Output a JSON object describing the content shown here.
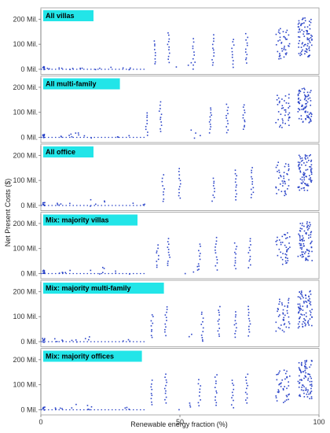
{
  "chart_data": {
    "type": "scatter",
    "ylabel": "Net Present Costs ($)",
    "xlabel": "Renewable energy fraction (%)",
    "xlim": [
      0,
      100
    ],
    "ylim": [
      0,
      220
    ],
    "x_ticks": [
      0,
      50,
      100
    ],
    "y_ticks": [
      0,
      100,
      200
    ],
    "y_tick_labels": [
      "0 Mil.",
      "100 Mil.",
      "200 Mil."
    ],
    "label_color": "#22e5e8",
    "point_color": "#2b44c8",
    "frame_color": "#9a9a9a",
    "panels": [
      {
        "label": "All villas",
        "clusters": [
          {
            "x": 1,
            "ymin": 0,
            "ymax": 12,
            "n": 8
          },
          {
            "x": 5,
            "ymin": 0,
            "ymax": 6,
            "n": 4
          },
          {
            "x": 12,
            "ymin": 0,
            "ymax": 6,
            "n": 4
          },
          {
            "x": 22,
            "ymin": 0,
            "ymax": 8,
            "n": 3
          },
          {
            "x": 30,
            "ymin": 0,
            "ymax": 6,
            "n": 3
          },
          {
            "x": 41,
            "ymin": 20,
            "ymax": 115,
            "n": 9
          },
          {
            "x": 46,
            "ymin": 30,
            "ymax": 145,
            "n": 11
          },
          {
            "x": 52,
            "ymin": 0,
            "ymax": 25,
            "n": 4
          },
          {
            "x": 55,
            "ymin": 15,
            "ymax": 120,
            "n": 9
          },
          {
            "x": 62,
            "ymin": 15,
            "ymax": 135,
            "n": 11
          },
          {
            "x": 69,
            "ymin": 10,
            "ymax": 120,
            "n": 10
          },
          {
            "x": 74,
            "ymin": 25,
            "ymax": 140,
            "n": 11
          },
          {
            "x": 87,
            "ymin": 40,
            "ymax": 160,
            "n": 40
          },
          {
            "x": 95,
            "ymin": 50,
            "ymax": 205,
            "n": 80
          }
        ]
      },
      {
        "label": "All multi-family",
        "clusters": [
          {
            "x": 1,
            "ymin": 0,
            "ymax": 12,
            "n": 8
          },
          {
            "x": 8,
            "ymin": 0,
            "ymax": 10,
            "n": 5
          },
          {
            "x": 15,
            "ymin": 0,
            "ymax": 20,
            "n": 5
          },
          {
            "x": 30,
            "ymin": 0,
            "ymax": 8,
            "n": 3
          },
          {
            "x": 38,
            "ymin": 10,
            "ymax": 100,
            "n": 9
          },
          {
            "x": 43,
            "ymin": 25,
            "ymax": 140,
            "n": 11
          },
          {
            "x": 55,
            "ymin": 0,
            "ymax": 30,
            "n": 4
          },
          {
            "x": 61,
            "ymin": 20,
            "ymax": 120,
            "n": 11
          },
          {
            "x": 67,
            "ymin": 20,
            "ymax": 130,
            "n": 11
          },
          {
            "x": 73,
            "ymin": 30,
            "ymax": 130,
            "n": 11
          },
          {
            "x": 87,
            "ymin": 40,
            "ymax": 170,
            "n": 40
          },
          {
            "x": 95,
            "ymin": 60,
            "ymax": 195,
            "n": 80
          }
        ]
      },
      {
        "label": "All office",
        "clusters": [
          {
            "x": 1,
            "ymin": 0,
            "ymax": 12,
            "n": 8
          },
          {
            "x": 8,
            "ymin": 0,
            "ymax": 10,
            "n": 5
          },
          {
            "x": 20,
            "ymin": 0,
            "ymax": 25,
            "n": 5
          },
          {
            "x": 35,
            "ymin": 0,
            "ymax": 8,
            "n": 3
          },
          {
            "x": 44,
            "ymin": 15,
            "ymax": 120,
            "n": 9
          },
          {
            "x": 50,
            "ymin": 30,
            "ymax": 145,
            "n": 11
          },
          {
            "x": 62,
            "ymin": 20,
            "ymax": 110,
            "n": 9
          },
          {
            "x": 70,
            "ymin": 25,
            "ymax": 140,
            "n": 11
          },
          {
            "x": 76,
            "ymin": 30,
            "ymax": 150,
            "n": 12
          },
          {
            "x": 87,
            "ymin": 40,
            "ymax": 170,
            "n": 40
          },
          {
            "x": 95,
            "ymin": 60,
            "ymax": 205,
            "n": 80
          }
        ]
      },
      {
        "label": "Mix: majority villas",
        "clusters": [
          {
            "x": 1,
            "ymin": 0,
            "ymax": 12,
            "n": 8
          },
          {
            "x": 8,
            "ymin": 0,
            "ymax": 10,
            "n": 5
          },
          {
            "x": 20,
            "ymin": 0,
            "ymax": 25,
            "n": 5
          },
          {
            "x": 30,
            "ymin": 0,
            "ymax": 8,
            "n": 3
          },
          {
            "x": 42,
            "ymin": 25,
            "ymax": 115,
            "n": 9
          },
          {
            "x": 46,
            "ymin": 30,
            "ymax": 140,
            "n": 11
          },
          {
            "x": 54,
            "ymin": 0,
            "ymax": 25,
            "n": 4
          },
          {
            "x": 57,
            "ymin": 15,
            "ymax": 120,
            "n": 9
          },
          {
            "x": 63,
            "ymin": 15,
            "ymax": 145,
            "n": 11
          },
          {
            "x": 70,
            "ymin": 20,
            "ymax": 120,
            "n": 10
          },
          {
            "x": 75,
            "ymin": 25,
            "ymax": 140,
            "n": 11
          },
          {
            "x": 87,
            "ymin": 40,
            "ymax": 160,
            "n": 40
          },
          {
            "x": 95,
            "ymin": 50,
            "ymax": 205,
            "n": 80
          }
        ]
      },
      {
        "label": "Mix: majority multi-family",
        "clusters": [
          {
            "x": 1,
            "ymin": 0,
            "ymax": 12,
            "n": 8
          },
          {
            "x": 8,
            "ymin": 0,
            "ymax": 10,
            "n": 5
          },
          {
            "x": 15,
            "ymin": 0,
            "ymax": 20,
            "n": 5
          },
          {
            "x": 30,
            "ymin": 0,
            "ymax": 8,
            "n": 3
          },
          {
            "x": 40,
            "ymin": 15,
            "ymax": 110,
            "n": 9
          },
          {
            "x": 45,
            "ymin": 25,
            "ymax": 140,
            "n": 11
          },
          {
            "x": 55,
            "ymin": 0,
            "ymax": 30,
            "n": 4
          },
          {
            "x": 58,
            "ymin": 15,
            "ymax": 120,
            "n": 9
          },
          {
            "x": 64,
            "ymin": 20,
            "ymax": 140,
            "n": 11
          },
          {
            "x": 70,
            "ymin": 20,
            "ymax": 120,
            "n": 10
          },
          {
            "x": 75,
            "ymin": 25,
            "ymax": 140,
            "n": 11
          },
          {
            "x": 87,
            "ymin": 40,
            "ymax": 170,
            "n": 40
          },
          {
            "x": 95,
            "ymin": 55,
            "ymax": 205,
            "n": 80
          }
        ]
      },
      {
        "label": "Mix: majority offices",
        "clusters": [
          {
            "x": 1,
            "ymin": 0,
            "ymax": 12,
            "n": 8
          },
          {
            "x": 8,
            "ymin": 0,
            "ymax": 10,
            "n": 5
          },
          {
            "x": 15,
            "ymin": 0,
            "ymax": 20,
            "n": 5
          },
          {
            "x": 30,
            "ymin": 0,
            "ymax": 8,
            "n": 3
          },
          {
            "x": 40,
            "ymin": 20,
            "ymax": 115,
            "n": 9
          },
          {
            "x": 45,
            "ymin": 30,
            "ymax": 140,
            "n": 11
          },
          {
            "x": 52,
            "ymin": 0,
            "ymax": 25,
            "n": 4
          },
          {
            "x": 57,
            "ymin": 15,
            "ymax": 120,
            "n": 9
          },
          {
            "x": 63,
            "ymin": 15,
            "ymax": 140,
            "n": 11
          },
          {
            "x": 69,
            "ymin": 10,
            "ymax": 120,
            "n": 10
          },
          {
            "x": 74,
            "ymin": 25,
            "ymax": 140,
            "n": 11
          },
          {
            "x": 87,
            "ymin": 30,
            "ymax": 160,
            "n": 40
          },
          {
            "x": 95,
            "ymin": 45,
            "ymax": 200,
            "n": 80
          }
        ]
      }
    ]
  }
}
